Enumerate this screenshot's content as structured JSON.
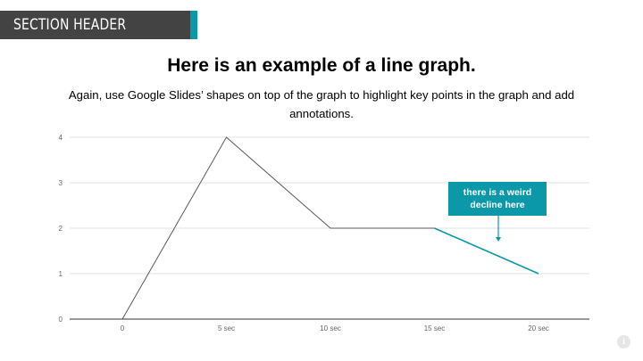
{
  "header": {
    "section_label": "SECTION HEADER",
    "accent_color": "#0b98a8",
    "bar_color": "#434343"
  },
  "slide": {
    "title": "Here is an example of a line graph.",
    "subtitle": "Again, use Google Slides’ shapes on top of the graph to highlight key points in the graph and add annotations."
  },
  "annotation": {
    "text": "there is a weird decline here",
    "color": "#0b98a8"
  },
  "info_icon": {
    "icon": "info-icon"
  },
  "chart_data": {
    "type": "line",
    "categories": [
      "0",
      "5 sec",
      "10 sec",
      "15 sec",
      "20 sec"
    ],
    "series": [
      {
        "values": [
          0,
          4,
          2,
          2,
          1
        ]
      }
    ],
    "highlight_segment": {
      "from_index": 3,
      "to_index": 4,
      "color": "#0b98a8"
    },
    "line_color": "#5a5a5a",
    "yticks": [
      0,
      1,
      2,
      3,
      4
    ],
    "ylim": [
      0,
      4
    ],
    "title": "",
    "xlabel": "",
    "ylabel": "",
    "grid": true,
    "legend": "none"
  }
}
